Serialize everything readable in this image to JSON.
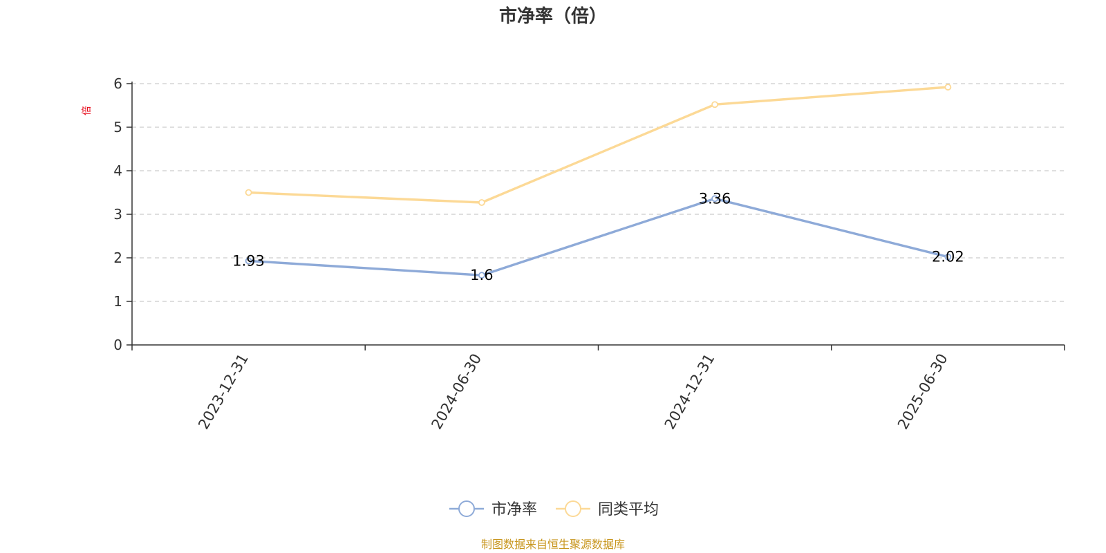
{
  "chart_data": {
    "type": "line",
    "title": "市净率（倍）",
    "ylabel": "倍",
    "x": [
      "2023-12-31",
      "2024-06-30",
      "2024-12-31",
      "2025-06-30"
    ],
    "ylim": [
      0,
      6
    ],
    "yticks": [
      0,
      1,
      2,
      3,
      4,
      5,
      6
    ],
    "grid": true,
    "legend_position": "bottom",
    "series": [
      {
        "name": "市净率",
        "values": [
          1.93,
          1.6,
          3.36,
          2.02
        ],
        "labels": [
          "1.93",
          "1.6",
          "3.36",
          "2.02"
        ],
        "color": "#8eaad8"
      },
      {
        "name": "同类平均",
        "values": [
          3.5,
          3.27,
          5.52,
          5.92
        ],
        "color": "#fcd996"
      }
    ],
    "source_note": "制图数据来自恒生聚源数据库"
  },
  "colors": {
    "axis": "#333333",
    "grid": "#cccccc",
    "ylabel": "#e60012",
    "source": "#c8961e"
  }
}
